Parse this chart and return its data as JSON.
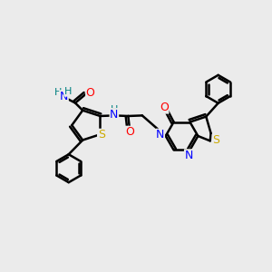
{
  "background_color": "#ebebeb",
  "atom_colors": {
    "C": "#000000",
    "N": "#0000ff",
    "O": "#ff0000",
    "S": "#ccaa00",
    "H": "#008080"
  },
  "bond_color": "#000000",
  "bond_width": 1.8,
  "font_size": 9
}
